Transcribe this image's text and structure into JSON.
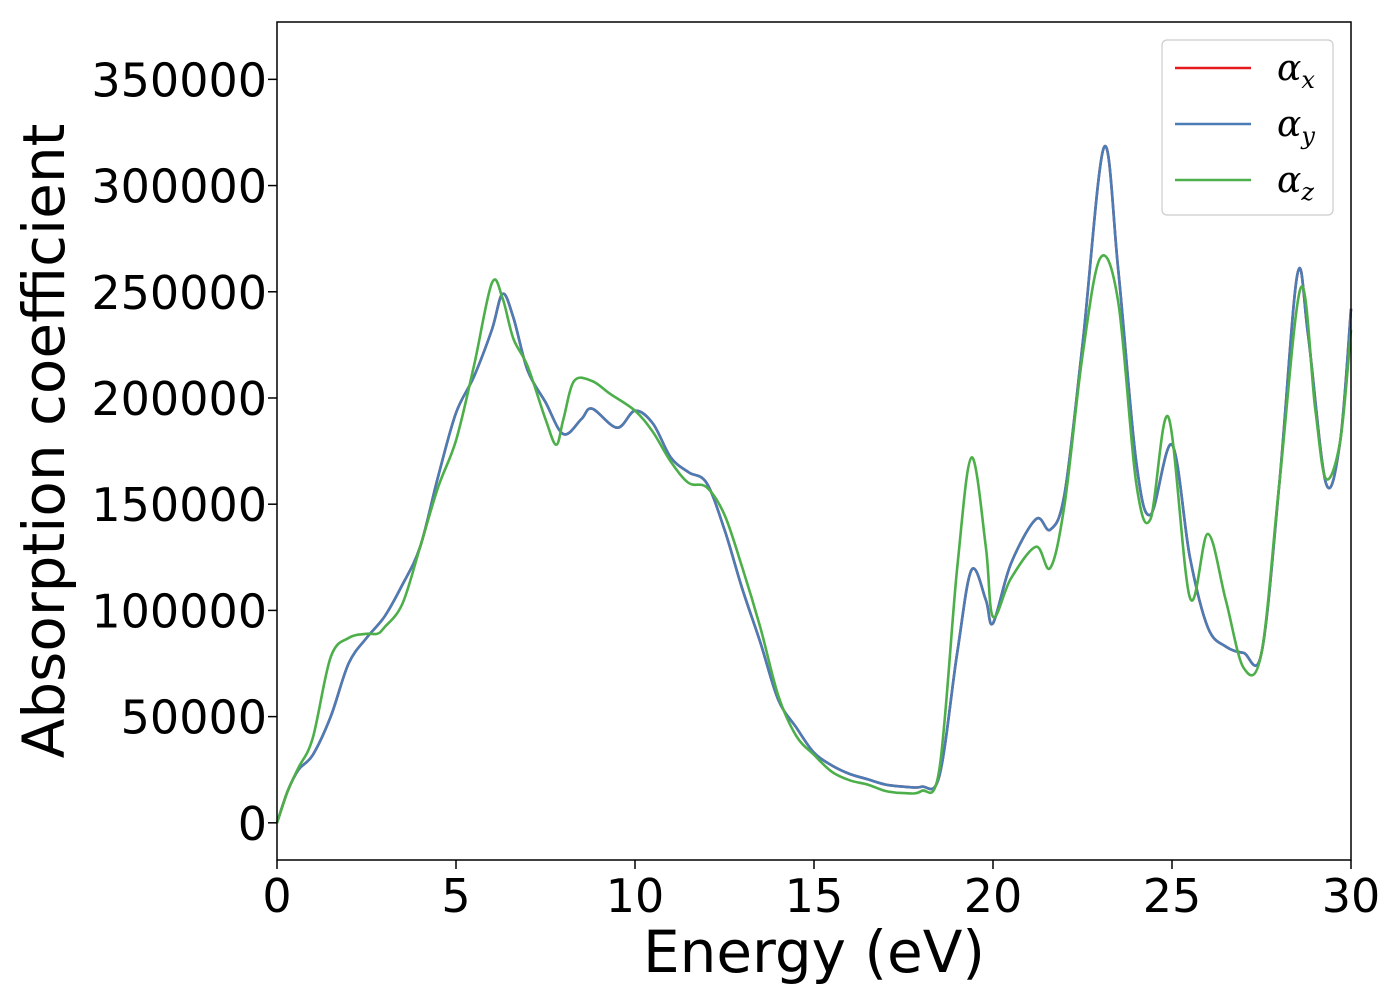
{
  "chart_data": {
    "type": "line",
    "title": "",
    "xlabel": "Energy (eV)",
    "ylabel": "Absorption coefficient",
    "xlim": [
      0,
      30
    ],
    "ylim": [
      -17500,
      377000
    ],
    "xticks": [
      0,
      5,
      10,
      15,
      20,
      25,
      30
    ],
    "xtick_labels": [
      "0",
      "5",
      "10",
      "15",
      "20",
      "25",
      "30"
    ],
    "yticks": [
      0,
      50000,
      100000,
      150000,
      200000,
      250000,
      300000,
      350000
    ],
    "ytick_labels": [
      "0",
      "50000",
      "100000",
      "150000",
      "200000",
      "250000",
      "300000",
      "350000"
    ],
    "grid": false,
    "legend_position": "top-right",
    "series": [
      {
        "name": "α_x",
        "legend_symbol": "α",
        "legend_sub": "x",
        "color": "#e41a1c",
        "points": [
          [
            0,
            0
          ],
          [
            0.3,
            15000
          ],
          [
            0.6,
            25000
          ],
          [
            1.0,
            32000
          ],
          [
            1.5,
            50000
          ],
          [
            2.0,
            75000
          ],
          [
            2.5,
            87000
          ],
          [
            3.0,
            97000
          ],
          [
            3.5,
            112000
          ],
          [
            4.0,
            130000
          ],
          [
            4.5,
            163000
          ],
          [
            5.0,
            193000
          ],
          [
            5.5,
            210000
          ],
          [
            6.0,
            232000
          ],
          [
            6.3,
            249000
          ],
          [
            6.6,
            238000
          ],
          [
            7.0,
            213000
          ],
          [
            7.5,
            198000
          ],
          [
            8.0,
            183000
          ],
          [
            8.5,
            190000
          ],
          [
            8.8,
            195000
          ],
          [
            9.5,
            186000
          ],
          [
            10.0,
            194000
          ],
          [
            10.5,
            188000
          ],
          [
            11.0,
            172000
          ],
          [
            11.5,
            165000
          ],
          [
            12.0,
            160000
          ],
          [
            12.5,
            138000
          ],
          [
            13.0,
            110000
          ],
          [
            13.5,
            85000
          ],
          [
            14.0,
            58000
          ],
          [
            14.5,
            45000
          ],
          [
            15.0,
            33000
          ],
          [
            15.5,
            27000
          ],
          [
            16.0,
            23000
          ],
          [
            16.5,
            20500
          ],
          [
            17.0,
            18000
          ],
          [
            17.5,
            17000
          ],
          [
            18.0,
            17000
          ],
          [
            18.5,
            22000
          ],
          [
            19.0,
            80000
          ],
          [
            19.4,
            119000
          ],
          [
            19.8,
            105000
          ],
          [
            20.0,
            94000
          ],
          [
            20.5,
            122000
          ],
          [
            21.2,
            143000
          ],
          [
            21.6,
            138000
          ],
          [
            22.0,
            155000
          ],
          [
            22.5,
            225000
          ],
          [
            23.1,
            318000
          ],
          [
            23.5,
            260000
          ],
          [
            24.0,
            170000
          ],
          [
            24.4,
            145000
          ],
          [
            25.0,
            178000
          ],
          [
            25.5,
            125000
          ],
          [
            26.0,
            92000
          ],
          [
            26.5,
            83000
          ],
          [
            27.0,
            80000
          ],
          [
            27.5,
            80000
          ],
          [
            28.0,
            160000
          ],
          [
            28.5,
            258000
          ],
          [
            28.8,
            230000
          ],
          [
            29.3,
            160000
          ],
          [
            29.7,
            180000
          ],
          [
            30.0,
            242000
          ]
        ]
      },
      {
        "name": "α_y",
        "legend_symbol": "α",
        "legend_sub": "y",
        "color": "#4a7db5",
        "points": [
          [
            0,
            0
          ],
          [
            0.3,
            15000
          ],
          [
            0.6,
            25000
          ],
          [
            1.0,
            32000
          ],
          [
            1.5,
            50000
          ],
          [
            2.0,
            75000
          ],
          [
            2.5,
            87000
          ],
          [
            3.0,
            97000
          ],
          [
            3.5,
            112000
          ],
          [
            4.0,
            130000
          ],
          [
            4.5,
            163000
          ],
          [
            5.0,
            193000
          ],
          [
            5.5,
            210000
          ],
          [
            6.0,
            232000
          ],
          [
            6.3,
            249000
          ],
          [
            6.6,
            238000
          ],
          [
            7.0,
            213000
          ],
          [
            7.5,
            198000
          ],
          [
            8.0,
            183000
          ],
          [
            8.5,
            190000
          ],
          [
            8.8,
            195000
          ],
          [
            9.5,
            186000
          ],
          [
            10.0,
            194000
          ],
          [
            10.5,
            188000
          ],
          [
            11.0,
            172000
          ],
          [
            11.5,
            165000
          ],
          [
            12.0,
            160000
          ],
          [
            12.5,
            138000
          ],
          [
            13.0,
            110000
          ],
          [
            13.5,
            85000
          ],
          [
            14.0,
            58000
          ],
          [
            14.5,
            45000
          ],
          [
            15.0,
            33000
          ],
          [
            15.5,
            27000
          ],
          [
            16.0,
            23000
          ],
          [
            16.5,
            20500
          ],
          [
            17.0,
            18000
          ],
          [
            17.5,
            17000
          ],
          [
            18.0,
            17000
          ],
          [
            18.5,
            22000
          ],
          [
            19.0,
            80000
          ],
          [
            19.4,
            119000
          ],
          [
            19.8,
            105000
          ],
          [
            20.0,
            94000
          ],
          [
            20.5,
            122000
          ],
          [
            21.2,
            143000
          ],
          [
            21.6,
            138000
          ],
          [
            22.0,
            155000
          ],
          [
            22.5,
            225000
          ],
          [
            23.1,
            318000
          ],
          [
            23.5,
            260000
          ],
          [
            24.0,
            170000
          ],
          [
            24.4,
            145000
          ],
          [
            25.0,
            178000
          ],
          [
            25.5,
            125000
          ],
          [
            26.0,
            92000
          ],
          [
            26.5,
            83000
          ],
          [
            27.0,
            80000
          ],
          [
            27.5,
            80000
          ],
          [
            28.0,
            160000
          ],
          [
            28.5,
            258000
          ],
          [
            28.8,
            230000
          ],
          [
            29.3,
            160000
          ],
          [
            29.7,
            180000
          ],
          [
            30.0,
            242000
          ]
        ]
      },
      {
        "name": "α_z",
        "legend_symbol": "α",
        "legend_sub": "z",
        "color": "#4daf4a",
        "points": [
          [
            0,
            0
          ],
          [
            0.3,
            15000
          ],
          [
            0.6,
            26000
          ],
          [
            1.0,
            40000
          ],
          [
            1.5,
            78000
          ],
          [
            2.0,
            87000
          ],
          [
            2.5,
            89000
          ],
          [
            2.8,
            89000
          ],
          [
            3.0,
            92000
          ],
          [
            3.5,
            103000
          ],
          [
            4.0,
            130000
          ],
          [
            4.5,
            158000
          ],
          [
            5.0,
            180000
          ],
          [
            5.5,
            215000
          ],
          [
            6.0,
            254000
          ],
          [
            6.3,
            247000
          ],
          [
            6.6,
            228000
          ],
          [
            7.0,
            215000
          ],
          [
            7.5,
            190000
          ],
          [
            7.8,
            178000
          ],
          [
            8.0,
            190000
          ],
          [
            8.3,
            208000
          ],
          [
            8.8,
            208000
          ],
          [
            9.3,
            202000
          ],
          [
            10.0,
            194000
          ],
          [
            10.5,
            184000
          ],
          [
            11.0,
            170000
          ],
          [
            11.5,
            160000
          ],
          [
            12.0,
            158000
          ],
          [
            12.5,
            145000
          ],
          [
            13.0,
            120000
          ],
          [
            13.5,
            92000
          ],
          [
            14.0,
            60000
          ],
          [
            14.5,
            41000
          ],
          [
            15.0,
            32000
          ],
          [
            15.5,
            24000
          ],
          [
            16.0,
            20000
          ],
          [
            16.5,
            18000
          ],
          [
            17.0,
            15000
          ],
          [
            17.5,
            14000
          ],
          [
            18.0,
            15000
          ],
          [
            18.5,
            25000
          ],
          [
            19.0,
            120000
          ],
          [
            19.4,
            172000
          ],
          [
            19.8,
            130000
          ],
          [
            20.0,
            97000
          ],
          [
            20.5,
            115000
          ],
          [
            21.2,
            130000
          ],
          [
            21.6,
            120000
          ],
          [
            22.0,
            150000
          ],
          [
            22.5,
            220000
          ],
          [
            23.0,
            266000
          ],
          [
            23.5,
            245000
          ],
          [
            24.0,
            160000
          ],
          [
            24.4,
            143000
          ],
          [
            24.9,
            191000
          ],
          [
            25.5,
            106000
          ],
          [
            26.0,
            136000
          ],
          [
            26.5,
            105000
          ],
          [
            27.0,
            73000
          ],
          [
            27.5,
            80000
          ],
          [
            28.0,
            160000
          ],
          [
            28.6,
            252000
          ],
          [
            29.0,
            195000
          ],
          [
            29.3,
            162000
          ],
          [
            29.7,
            180000
          ],
          [
            30.0,
            232000
          ]
        ]
      }
    ]
  }
}
